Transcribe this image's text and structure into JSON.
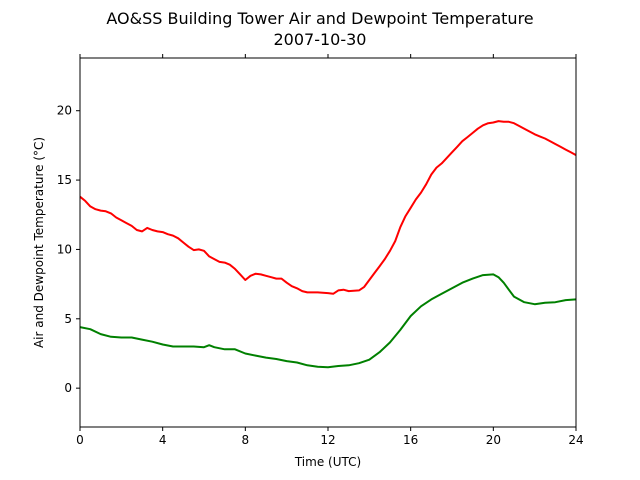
{
  "chart_data": {
    "type": "line",
    "title": "AO&SS Building Tower Air and Dewpoint Temperature",
    "subtitle": "2007-10-30",
    "xlabel": "Time (UTC)",
    "ylabel": "Air and Dewpoint Temperature (°C)",
    "xlim": [
      0,
      24
    ],
    "ylim": [
      -2.8,
      23.8
    ],
    "xticks": [
      0,
      4,
      8,
      12,
      16,
      20,
      24
    ],
    "yticks": [
      0,
      5,
      10,
      15,
      20
    ],
    "grid": false,
    "legend": "none",
    "series": [
      {
        "color": "#ff0000",
        "points": [
          [
            0,
            13.8
          ],
          [
            0.25,
            13.5
          ],
          [
            0.5,
            13.1
          ],
          [
            0.75,
            12.9
          ],
          [
            1,
            12.8
          ],
          [
            1.25,
            12.75
          ],
          [
            1.5,
            12.6
          ],
          [
            1.75,
            12.3
          ],
          [
            2,
            12.1
          ],
          [
            2.25,
            11.9
          ],
          [
            2.5,
            11.7
          ],
          [
            2.75,
            11.4
          ],
          [
            3,
            11.3
          ],
          [
            3.25,
            11.55
          ],
          [
            3.5,
            11.4
          ],
          [
            3.75,
            11.3
          ],
          [
            4,
            11.25
          ],
          [
            4.25,
            11.1
          ],
          [
            4.5,
            11.0
          ],
          [
            4.75,
            10.8
          ],
          [
            5,
            10.5
          ],
          [
            5.25,
            10.2
          ],
          [
            5.5,
            9.95
          ],
          [
            5.75,
            10.0
          ],
          [
            6,
            9.9
          ],
          [
            6.25,
            9.5
          ],
          [
            6.5,
            9.3
          ],
          [
            6.75,
            9.1
          ],
          [
            7,
            9.05
          ],
          [
            7.25,
            8.9
          ],
          [
            7.5,
            8.6
          ],
          [
            7.75,
            8.2
          ],
          [
            8,
            7.8
          ],
          [
            8.25,
            8.1
          ],
          [
            8.5,
            8.25
          ],
          [
            8.75,
            8.2
          ],
          [
            9,
            8.1
          ],
          [
            9.25,
            8.0
          ],
          [
            9.5,
            7.9
          ],
          [
            9.75,
            7.9
          ],
          [
            10,
            7.6
          ],
          [
            10.25,
            7.35
          ],
          [
            10.5,
            7.2
          ],
          [
            10.75,
            7.0
          ],
          [
            11,
            6.9
          ],
          [
            11.5,
            6.9
          ],
          [
            12,
            6.85
          ],
          [
            12.25,
            6.8
          ],
          [
            12.5,
            7.05
          ],
          [
            12.75,
            7.1
          ],
          [
            13,
            7.0
          ],
          [
            13.5,
            7.05
          ],
          [
            13.75,
            7.3
          ],
          [
            14,
            7.8
          ],
          [
            14.25,
            8.3
          ],
          [
            14.5,
            8.8
          ],
          [
            14.75,
            9.3
          ],
          [
            15,
            9.9
          ],
          [
            15.25,
            10.6
          ],
          [
            15.5,
            11.6
          ],
          [
            15.75,
            12.4
          ],
          [
            16,
            13.0
          ],
          [
            16.25,
            13.6
          ],
          [
            16.5,
            14.1
          ],
          [
            16.75,
            14.7
          ],
          [
            17,
            15.4
          ],
          [
            17.25,
            15.9
          ],
          [
            17.5,
            16.2
          ],
          [
            17.75,
            16.6
          ],
          [
            18,
            17.0
          ],
          [
            18.25,
            17.4
          ],
          [
            18.5,
            17.8
          ],
          [
            18.75,
            18.1
          ],
          [
            19,
            18.4
          ],
          [
            19.25,
            18.7
          ],
          [
            19.5,
            18.95
          ],
          [
            19.75,
            19.1
          ],
          [
            20,
            19.15
          ],
          [
            20.25,
            19.25
          ],
          [
            20.5,
            19.2
          ],
          [
            20.75,
            19.2
          ],
          [
            21,
            19.1
          ],
          [
            21.25,
            18.9
          ],
          [
            21.5,
            18.7
          ],
          [
            21.75,
            18.5
          ],
          [
            22,
            18.3
          ],
          [
            22.25,
            18.15
          ],
          [
            22.5,
            18.0
          ],
          [
            22.75,
            17.8
          ],
          [
            23,
            17.6
          ],
          [
            23.25,
            17.4
          ],
          [
            23.5,
            17.2
          ],
          [
            23.75,
            17.0
          ],
          [
            24,
            16.8
          ]
        ]
      },
      {
        "color": "#008000",
        "points": [
          [
            0,
            4.4
          ],
          [
            0.5,
            4.25
          ],
          [
            1,
            3.9
          ],
          [
            1.5,
            3.7
          ],
          [
            2,
            3.65
          ],
          [
            2.5,
            3.65
          ],
          [
            3,
            3.5
          ],
          [
            3.5,
            3.35
          ],
          [
            4,
            3.15
          ],
          [
            4.5,
            3.0
          ],
          [
            5,
            3.0
          ],
          [
            5.5,
            3.0
          ],
          [
            6,
            2.95
          ],
          [
            6.25,
            3.1
          ],
          [
            6.5,
            2.95
          ],
          [
            7,
            2.8
          ],
          [
            7.5,
            2.8
          ],
          [
            8,
            2.5
          ],
          [
            8.5,
            2.35
          ],
          [
            9,
            2.2
          ],
          [
            9.5,
            2.1
          ],
          [
            10,
            1.95
          ],
          [
            10.5,
            1.85
          ],
          [
            11,
            1.65
          ],
          [
            11.5,
            1.55
          ],
          [
            12,
            1.5
          ],
          [
            12.5,
            1.6
          ],
          [
            13,
            1.65
          ],
          [
            13.5,
            1.8
          ],
          [
            14,
            2.05
          ],
          [
            14.5,
            2.6
          ],
          [
            15,
            3.3
          ],
          [
            15.5,
            4.2
          ],
          [
            16,
            5.2
          ],
          [
            16.5,
            5.9
          ],
          [
            17,
            6.4
          ],
          [
            17.5,
            6.8
          ],
          [
            18,
            7.2
          ],
          [
            18.5,
            7.6
          ],
          [
            19,
            7.9
          ],
          [
            19.5,
            8.15
          ],
          [
            20,
            8.2
          ],
          [
            20.25,
            8.0
          ],
          [
            20.5,
            7.6
          ],
          [
            20.75,
            7.1
          ],
          [
            21,
            6.6
          ],
          [
            21.5,
            6.2
          ],
          [
            22,
            6.05
          ],
          [
            22.5,
            6.15
          ],
          [
            23,
            6.2
          ],
          [
            23.5,
            6.35
          ],
          [
            24,
            6.4
          ]
        ]
      }
    ]
  }
}
